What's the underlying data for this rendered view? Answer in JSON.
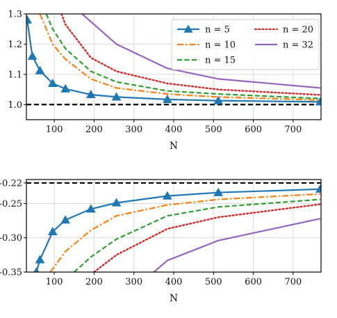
{
  "chart_data": [
    {
      "type": "line",
      "xlabel": "N",
      "ylabel": "",
      "xlim": [
        30,
        770
      ],
      "ylim": [
        0.95,
        1.3
      ],
      "xticks": [
        100,
        200,
        300,
        400,
        500,
        600,
        700
      ],
      "yticks": [
        1.0,
        1.1,
        1.2,
        1.3
      ],
      "ytick_labels": [
        "1.0",
        "1.1",
        "1.2",
        "1.3"
      ],
      "grid": true,
      "legend": {
        "placement": "top-right",
        "columns": 2
      },
      "reference_line": {
        "y": 1.0,
        "color": "#000000",
        "style": "dashed"
      },
      "series": [
        {
          "name": "n = 5",
          "color": "#1f77b4",
          "style": "solid",
          "marker": "triangle",
          "x": [
            32,
            45,
            64,
            96,
            128,
            192,
            256,
            384,
            512,
            768
          ],
          "y": [
            1.28,
            1.16,
            1.112,
            1.07,
            1.052,
            1.033,
            1.025,
            1.017,
            1.013,
            1.009
          ]
        },
        {
          "name": "n = 10",
          "color": "#ff7f0e",
          "style": "dashdot",
          "marker": "none",
          "x": [
            64,
            96,
            128,
            192,
            256,
            384,
            512,
            768
          ],
          "y": [
            1.3,
            1.2,
            1.15,
            1.085,
            1.055,
            1.035,
            1.025,
            1.015
          ]
        },
        {
          "name": "n = 15",
          "color": "#2ca02c",
          "style": "dashed",
          "marker": "none",
          "x": [
            80,
            96,
            128,
            192,
            256,
            384,
            512,
            768
          ],
          "y": [
            1.3,
            1.25,
            1.185,
            1.11,
            1.075,
            1.045,
            1.035,
            1.02
          ]
        },
        {
          "name": "n = 20",
          "color": "#d62728",
          "style": "dotted",
          "marker": "none",
          "x": [
            118,
            128,
            192,
            256,
            384,
            512,
            768
          ],
          "y": [
            1.3,
            1.265,
            1.155,
            1.11,
            1.07,
            1.05,
            1.032
          ]
        },
        {
          "name": "n = 32",
          "color": "#9467bd",
          "style": "solid",
          "marker": "none",
          "x": [
            170,
            256,
            384,
            512,
            768
          ],
          "y": [
            1.3,
            1.2,
            1.12,
            1.085,
            1.055
          ]
        }
      ]
    },
    {
      "type": "line",
      "xlabel": "N",
      "ylabel": "",
      "xlim": [
        30,
        770
      ],
      "ylim": [
        -0.35,
        -0.215
      ],
      "xticks": [
        100,
        200,
        300,
        400,
        500,
        600,
        700
      ],
      "yticks": [
        -0.35,
        -0.3,
        -0.25,
        -0.22
      ],
      "ytick_labels": [
        "-0.35",
        "-0.30",
        "-0.25",
        "-0.22"
      ],
      "grid": true,
      "reference_line": {
        "y": -0.22,
        "color": "#000000",
        "style": "dashed"
      },
      "series": [
        {
          "name": "n = 5",
          "color": "#1f77b4",
          "style": "solid",
          "marker": "triangle",
          "x": [
            55,
            64,
            96,
            128,
            192,
            256,
            384,
            512,
            768
          ],
          "y": [
            -0.35,
            -0.332,
            -0.291,
            -0.274,
            -0.258,
            -0.249,
            -0.239,
            -0.234,
            -0.229
          ]
        },
        {
          "name": "n = 10",
          "color": "#ff7f0e",
          "style": "dashdot",
          "marker": "none",
          "x": [
            90,
            128,
            192,
            256,
            384,
            512,
            768
          ],
          "y": [
            -0.35,
            -0.32,
            -0.289,
            -0.268,
            -0.252,
            -0.244,
            -0.236
          ]
        },
        {
          "name": "n = 15",
          "color": "#2ca02c",
          "style": "dashed",
          "marker": "none",
          "x": [
            150,
            192,
            256,
            384,
            512,
            768
          ],
          "y": [
            -0.35,
            -0.328,
            -0.302,
            -0.268,
            -0.255,
            -0.244
          ]
        },
        {
          "name": "n = 20",
          "color": "#d62728",
          "style": "dotted",
          "marker": "none",
          "x": [
            200,
            256,
            384,
            512,
            768
          ],
          "y": [
            -0.35,
            -0.325,
            -0.287,
            -0.27,
            -0.251
          ]
        },
        {
          "name": "n = 32",
          "color": "#9467bd",
          "style": "solid",
          "marker": "none",
          "x": [
            350,
            384,
            512,
            768
          ],
          "y": [
            -0.35,
            -0.333,
            -0.304,
            -0.272
          ]
        }
      ]
    }
  ]
}
